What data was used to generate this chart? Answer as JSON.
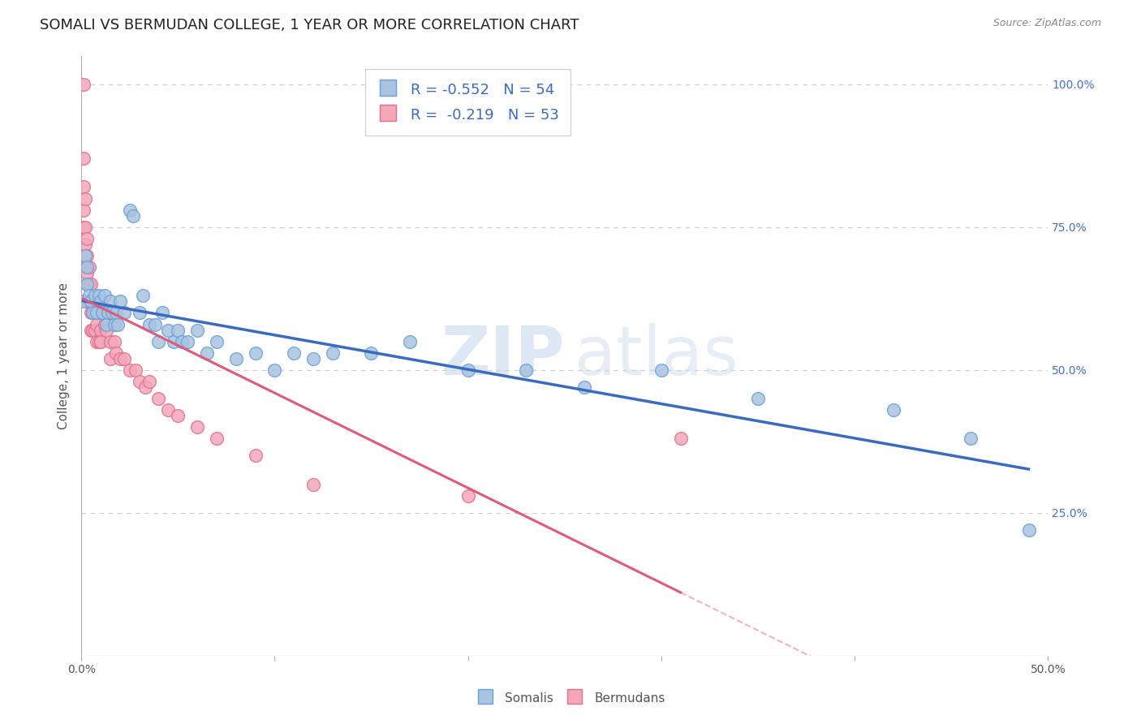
{
  "title": "SOMALI VS BERMUDAN COLLEGE, 1 YEAR OR MORE CORRELATION CHART",
  "source": "Source: ZipAtlas.com",
  "ylabel": "College, 1 year or more",
  "ylabel_right_labels": [
    "100.0%",
    "75.0%",
    "50.0%",
    "25.0%"
  ],
  "ylabel_right_positions": [
    1.0,
    0.75,
    0.5,
    0.25
  ],
  "xmin": 0.0,
  "xmax": 0.5,
  "ymin": 0.0,
  "ymax": 1.05,
  "somali_color": "#a8c4e0",
  "bermudan_color": "#f4a7b9",
  "somali_line_color": "#3a6bbf",
  "bermudan_line_color": "#e05a7a",
  "somali_edge_color": "#6a9fd8",
  "bermudan_edge_color": "#e07090",
  "legend_somali_label": "R = -0.552   N = 54",
  "legend_bermudan_label": "R =  -0.219   N = 53",
  "grid_color": "#cccccc",
  "background_color": "#ffffff",
  "title_fontsize": 13,
  "axis_label_fontsize": 11,
  "tick_fontsize": 10,
  "legend_fontsize": 13,
  "somali_x": [
    0.001,
    0.002,
    0.003,
    0.003,
    0.004,
    0.005,
    0.006,
    0.007,
    0.008,
    0.009,
    0.01,
    0.011,
    0.012,
    0.013,
    0.014,
    0.015,
    0.016,
    0.017,
    0.018,
    0.019,
    0.02,
    0.022,
    0.025,
    0.027,
    0.03,
    0.032,
    0.035,
    0.038,
    0.04,
    0.042,
    0.045,
    0.048,
    0.05,
    0.052,
    0.055,
    0.06,
    0.065,
    0.07,
    0.08,
    0.09,
    0.1,
    0.11,
    0.12,
    0.13,
    0.15,
    0.17,
    0.2,
    0.23,
    0.26,
    0.3,
    0.35,
    0.42,
    0.46,
    0.49
  ],
  "somali_y": [
    0.62,
    0.7,
    0.65,
    0.68,
    0.63,
    0.62,
    0.6,
    0.63,
    0.6,
    0.63,
    0.62,
    0.6,
    0.63,
    0.58,
    0.6,
    0.62,
    0.6,
    0.58,
    0.6,
    0.58,
    0.62,
    0.6,
    0.78,
    0.77,
    0.6,
    0.63,
    0.58,
    0.58,
    0.55,
    0.6,
    0.57,
    0.55,
    0.57,
    0.55,
    0.55,
    0.57,
    0.53,
    0.55,
    0.52,
    0.53,
    0.5,
    0.53,
    0.52,
    0.53,
    0.53,
    0.55,
    0.5,
    0.5,
    0.47,
    0.5,
    0.45,
    0.43,
    0.38,
    0.22
  ],
  "bermudan_x": [
    0.001,
    0.001,
    0.001,
    0.001,
    0.001,
    0.002,
    0.002,
    0.002,
    0.002,
    0.003,
    0.003,
    0.003,
    0.003,
    0.003,
    0.004,
    0.004,
    0.004,
    0.005,
    0.005,
    0.005,
    0.005,
    0.006,
    0.006,
    0.006,
    0.007,
    0.007,
    0.008,
    0.008,
    0.009,
    0.01,
    0.01,
    0.012,
    0.013,
    0.015,
    0.015,
    0.017,
    0.018,
    0.02,
    0.022,
    0.025,
    0.028,
    0.03,
    0.033,
    0.035,
    0.04,
    0.045,
    0.05,
    0.06,
    0.07,
    0.09,
    0.12,
    0.2,
    0.31
  ],
  "bermudan_y": [
    1.0,
    0.87,
    0.82,
    0.78,
    0.75,
    0.8,
    0.75,
    0.72,
    0.68,
    0.73,
    0.7,
    0.67,
    0.65,
    0.62,
    0.68,
    0.65,
    0.62,
    0.65,
    0.62,
    0.6,
    0.57,
    0.62,
    0.6,
    0.57,
    0.6,
    0.57,
    0.58,
    0.55,
    0.55,
    0.57,
    0.55,
    0.58,
    0.57,
    0.55,
    0.52,
    0.55,
    0.53,
    0.52,
    0.52,
    0.5,
    0.5,
    0.48,
    0.47,
    0.48,
    0.45,
    0.43,
    0.42,
    0.4,
    0.38,
    0.35,
    0.3,
    0.28,
    0.38
  ]
}
